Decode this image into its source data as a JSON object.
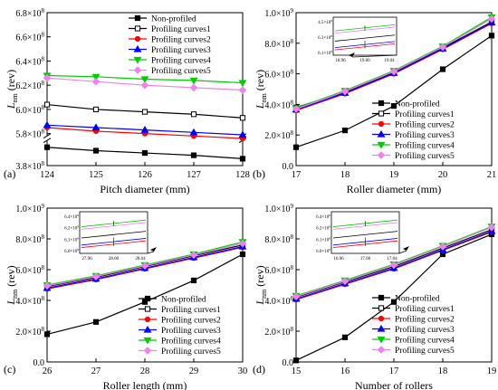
{
  "series_styles": [
    {
      "color": "#000000",
      "marker": "square",
      "filled": true
    },
    {
      "color": "#000000",
      "marker": "square",
      "filled": false
    },
    {
      "color": "#ff0000",
      "marker": "circle",
      "filled": true
    },
    {
      "color": "#0000ff",
      "marker": "triangle",
      "filled": true
    },
    {
      "color": "#00cc00",
      "marker": "triangle-down",
      "filled": true
    },
    {
      "color": "#ee82ee",
      "marker": "diamond",
      "filled": true
    }
  ],
  "chart_data": [
    {
      "panel_label": "(a)",
      "type": "line",
      "xlabel": "Pitch diameter (mm)",
      "ylabel": "L",
      "ylabel_sub": "nm",
      "ylabel_unit": " (rev)",
      "x": [
        124,
        125,
        126,
        127,
        128
      ],
      "x_ticks": [
        "124",
        "125",
        "126",
        "127",
        "128"
      ],
      "ylim": [
        380000000.0,
        680000000.0
      ],
      "axis_break": {
        "between": [
          400000000.0,
          580000000.0
        ]
      },
      "y_ticks": [
        {
          "value": 380000000.0,
          "mantissa": "3.8",
          "exp": "8"
        },
        {
          "value": 580000000.0,
          "mantissa": "5.8",
          "exp": "8"
        },
        {
          "value": 600000000.0,
          "mantissa": "6.0",
          "exp": "8"
        },
        {
          "value": 620000000.0,
          "mantissa": "6.2",
          "exp": "8"
        },
        {
          "value": 640000000.0,
          "mantissa": "6.4",
          "exp": "8"
        },
        {
          "value": 660000000.0,
          "mantissa": "6.6",
          "exp": "8"
        },
        {
          "value": 680000000.0,
          "mantissa": "6.8",
          "exp": "8"
        }
      ],
      "legend_position": "top-right",
      "series": [
        {
          "name": "Non-profiled",
          "values": [
            396000000.0,
            393000000.0,
            391000000.0,
            389000000.0,
            386000000.0
          ]
        },
        {
          "name": "Profiling curves1",
          "values": [
            604000000.0,
            600000000.0,
            598000000.0,
            596000000.0,
            593000000.0
          ]
        },
        {
          "name": "Profiling curves2",
          "values": [
            585000000.0,
            582000000.0,
            580000000.0,
            578000000.0,
            576000000.0
          ]
        },
        {
          "name": "Profiling curves3",
          "values": [
            587000000.0,
            585000000.0,
            583000000.0,
            581000000.0,
            579000000.0
          ]
        },
        {
          "name": "Profiling curves4",
          "values": [
            628000000.0,
            627000000.0,
            625000000.0,
            624000000.0,
            622000000.0
          ]
        },
        {
          "name": "Profiling curves5",
          "values": [
            626000000.0,
            623000000.0,
            620000000.0,
            618000000.0,
            616000000.0
          ]
        }
      ]
    },
    {
      "panel_label": "(b)",
      "type": "line",
      "xlabel": "Roller diameter (mm)",
      "ylabel": "L",
      "ylabel_sub": "nm",
      "ylabel_unit": " (rev)",
      "x": [
        17,
        18,
        19,
        20,
        21
      ],
      "x_ticks": [
        "17",
        "18",
        "19",
        "20",
        "21"
      ],
      "ylim": [
        0,
        1000000000.0
      ],
      "y_ticks": [
        {
          "value": 0,
          "mantissa": "0.0",
          "exp": ""
        },
        {
          "value": 200000000.0,
          "mantissa": "2.0",
          "exp": "8"
        },
        {
          "value": 400000000.0,
          "mantissa": "4.0",
          "exp": "8"
        },
        {
          "value": 600000000.0,
          "mantissa": "6.0",
          "exp": "8"
        },
        {
          "value": 800000000.0,
          "mantissa": "8.0",
          "exp": "8"
        },
        {
          "value": 1000000000.0,
          "mantissa": "1.0",
          "exp": "9"
        }
      ],
      "legend_position": "bottom-right",
      "inset": {
        "x_ticks": [
          "18.96",
          "19.00",
          "19.04"
        ],
        "y_ticks": [
          {
            "mantissa": "4.5",
            "exp": "8"
          },
          {
            "mantissa": "6.3",
            "exp": "8"
          },
          {
            "mantissa": "6.1",
            "exp": "8"
          }
        ]
      },
      "series": [
        {
          "name": "Non-profiled",
          "values": [
            120000000.0,
            230000000.0,
            390000000.0,
            630000000.0,
            850000000.0
          ]
        },
        {
          "name": "Profiling curves1",
          "values": [
            380000000.0,
            480000000.0,
            610000000.0,
            770000000.0,
            940000000.0
          ]
        },
        {
          "name": "Profiling curves2",
          "values": [
            360000000.0,
            470000000.0,
            600000000.0,
            760000000.0,
            930000000.0
          ]
        },
        {
          "name": "Profiling curves3",
          "values": [
            365000000.0,
            475000000.0,
            605000000.0,
            765000000.0,
            935000000.0
          ]
        },
        {
          "name": "Profiling curves4",
          "values": [
            375000000.0,
            490000000.0,
            620000000.0,
            780000000.0,
            970000000.0
          ]
        },
        {
          "name": "Profiling curves5",
          "values": [
            370000000.0,
            485000000.0,
            615000000.0,
            775000000.0,
            960000000.0
          ]
        }
      ]
    },
    {
      "panel_label": "(c)",
      "type": "line",
      "xlabel": "Roller length (mm)",
      "ylabel": "L",
      "ylabel_sub": "nm",
      "ylabel_unit": " (rev)",
      "x": [
        26,
        27,
        28,
        29,
        30
      ],
      "x_ticks": [
        "26",
        "27",
        "28",
        "29",
        "30"
      ],
      "ylim": [
        0,
        1000000000.0
      ],
      "y_ticks": [
        {
          "value": 0,
          "mantissa": "0.0",
          "exp": ""
        },
        {
          "value": 200000000.0,
          "mantissa": "2.0",
          "exp": "8"
        },
        {
          "value": 400000000.0,
          "mantissa": "4.0",
          "exp": "8"
        },
        {
          "value": 600000000.0,
          "mantissa": "6.0",
          "exp": "8"
        },
        {
          "value": 800000000.0,
          "mantissa": "8.0",
          "exp": "8"
        },
        {
          "value": 1000000000.0,
          "mantissa": "1.0",
          "exp": "9"
        }
      ],
      "legend_position": "bottom-right",
      "inset": {
        "x_ticks": [
          "27.96",
          "28.00",
          "28.04"
        ],
        "y_ticks": [
          {
            "mantissa": "6.4",
            "exp": "8"
          },
          {
            "mantissa": "6.2",
            "exp": "8"
          },
          {
            "mantissa": "6.1",
            "exp": "8"
          },
          {
            "mantissa": "6.0",
            "exp": "8"
          }
        ]
      },
      "series": [
        {
          "name": "Non-profiled",
          "values": [
            180000000.0,
            260000000.0,
            390000000.0,
            530000000.0,
            700000000.0
          ]
        },
        {
          "name": "Profiling curves1",
          "values": [
            490000000.0,
            550000000.0,
            620000000.0,
            690000000.0,
            760000000.0
          ]
        },
        {
          "name": "Profiling curves2",
          "values": [
            475000000.0,
            535000000.0,
            605000000.0,
            675000000.0,
            745000000.0
          ]
        },
        {
          "name": "Profiling curves3",
          "values": [
            480000000.0,
            540000000.0,
            610000000.0,
            680000000.0,
            750000000.0
          ]
        },
        {
          "name": "Profiling curves4",
          "values": [
            500000000.0,
            560000000.0,
            630000000.0,
            700000000.0,
            780000000.0
          ]
        },
        {
          "name": "Profiling curves5",
          "values": [
            495000000.0,
            555000000.0,
            625000000.0,
            695000000.0,
            770000000.0
          ]
        }
      ]
    },
    {
      "panel_label": "(d)",
      "type": "line",
      "xlabel": "Number of rollers",
      "ylabel": "L",
      "ylabel_sub": "nm",
      "ylabel_unit": " (rev)",
      "x": [
        15,
        16,
        17,
        18,
        19
      ],
      "x_ticks": [
        "15",
        "16",
        "17",
        "18",
        "19"
      ],
      "ylim": [
        0,
        1000000000.0
      ],
      "y_ticks": [
        {
          "value": 0,
          "mantissa": "0.0",
          "exp": ""
        },
        {
          "value": 200000000.0,
          "mantissa": "2.0",
          "exp": "8"
        },
        {
          "value": 400000000.0,
          "mantissa": "4.0",
          "exp": "8"
        },
        {
          "value": 600000000.0,
          "mantissa": "6.0",
          "exp": "8"
        },
        {
          "value": 800000000.0,
          "mantissa": "8.0",
          "exp": "8"
        },
        {
          "value": 1000000000.0,
          "mantissa": "1.0",
          "exp": "9"
        }
      ],
      "legend_position": "bottom-right",
      "inset": {
        "x_ticks": [
          "16.96",
          "17.00",
          "17.04"
        ],
        "y_ticks": [
          {
            "mantissa": "6.4",
            "exp": "8"
          },
          {
            "mantissa": "6.2",
            "exp": "8"
          },
          {
            "mantissa": "6.1",
            "exp": "8"
          },
          {
            "mantissa": "6.0",
            "exp": "8"
          }
        ]
      },
      "series": [
        {
          "name": "Non-profiled",
          "values": [
            10000000.0,
            160000000.0,
            390000000.0,
            700000000.0,
            830000000.0
          ]
        },
        {
          "name": "Profiling curves1",
          "values": [
            420000000.0,
            520000000.0,
            620000000.0,
            740000000.0,
            860000000.0
          ]
        },
        {
          "name": "Profiling curves2",
          "values": [
            405000000.0,
            505000000.0,
            605000000.0,
            725000000.0,
            845000000.0
          ]
        },
        {
          "name": "Profiling curves3",
          "values": [
            410000000.0,
            510000000.0,
            610000000.0,
            730000000.0,
            850000000.0
          ]
        },
        {
          "name": "Profiling curves4",
          "values": [
            430000000.0,
            530000000.0,
            635000000.0,
            755000000.0,
            880000000.0
          ]
        },
        {
          "name": "Profiling curves5",
          "values": [
            425000000.0,
            525000000.0,
            630000000.0,
            750000000.0,
            875000000.0
          ]
        }
      ]
    }
  ]
}
